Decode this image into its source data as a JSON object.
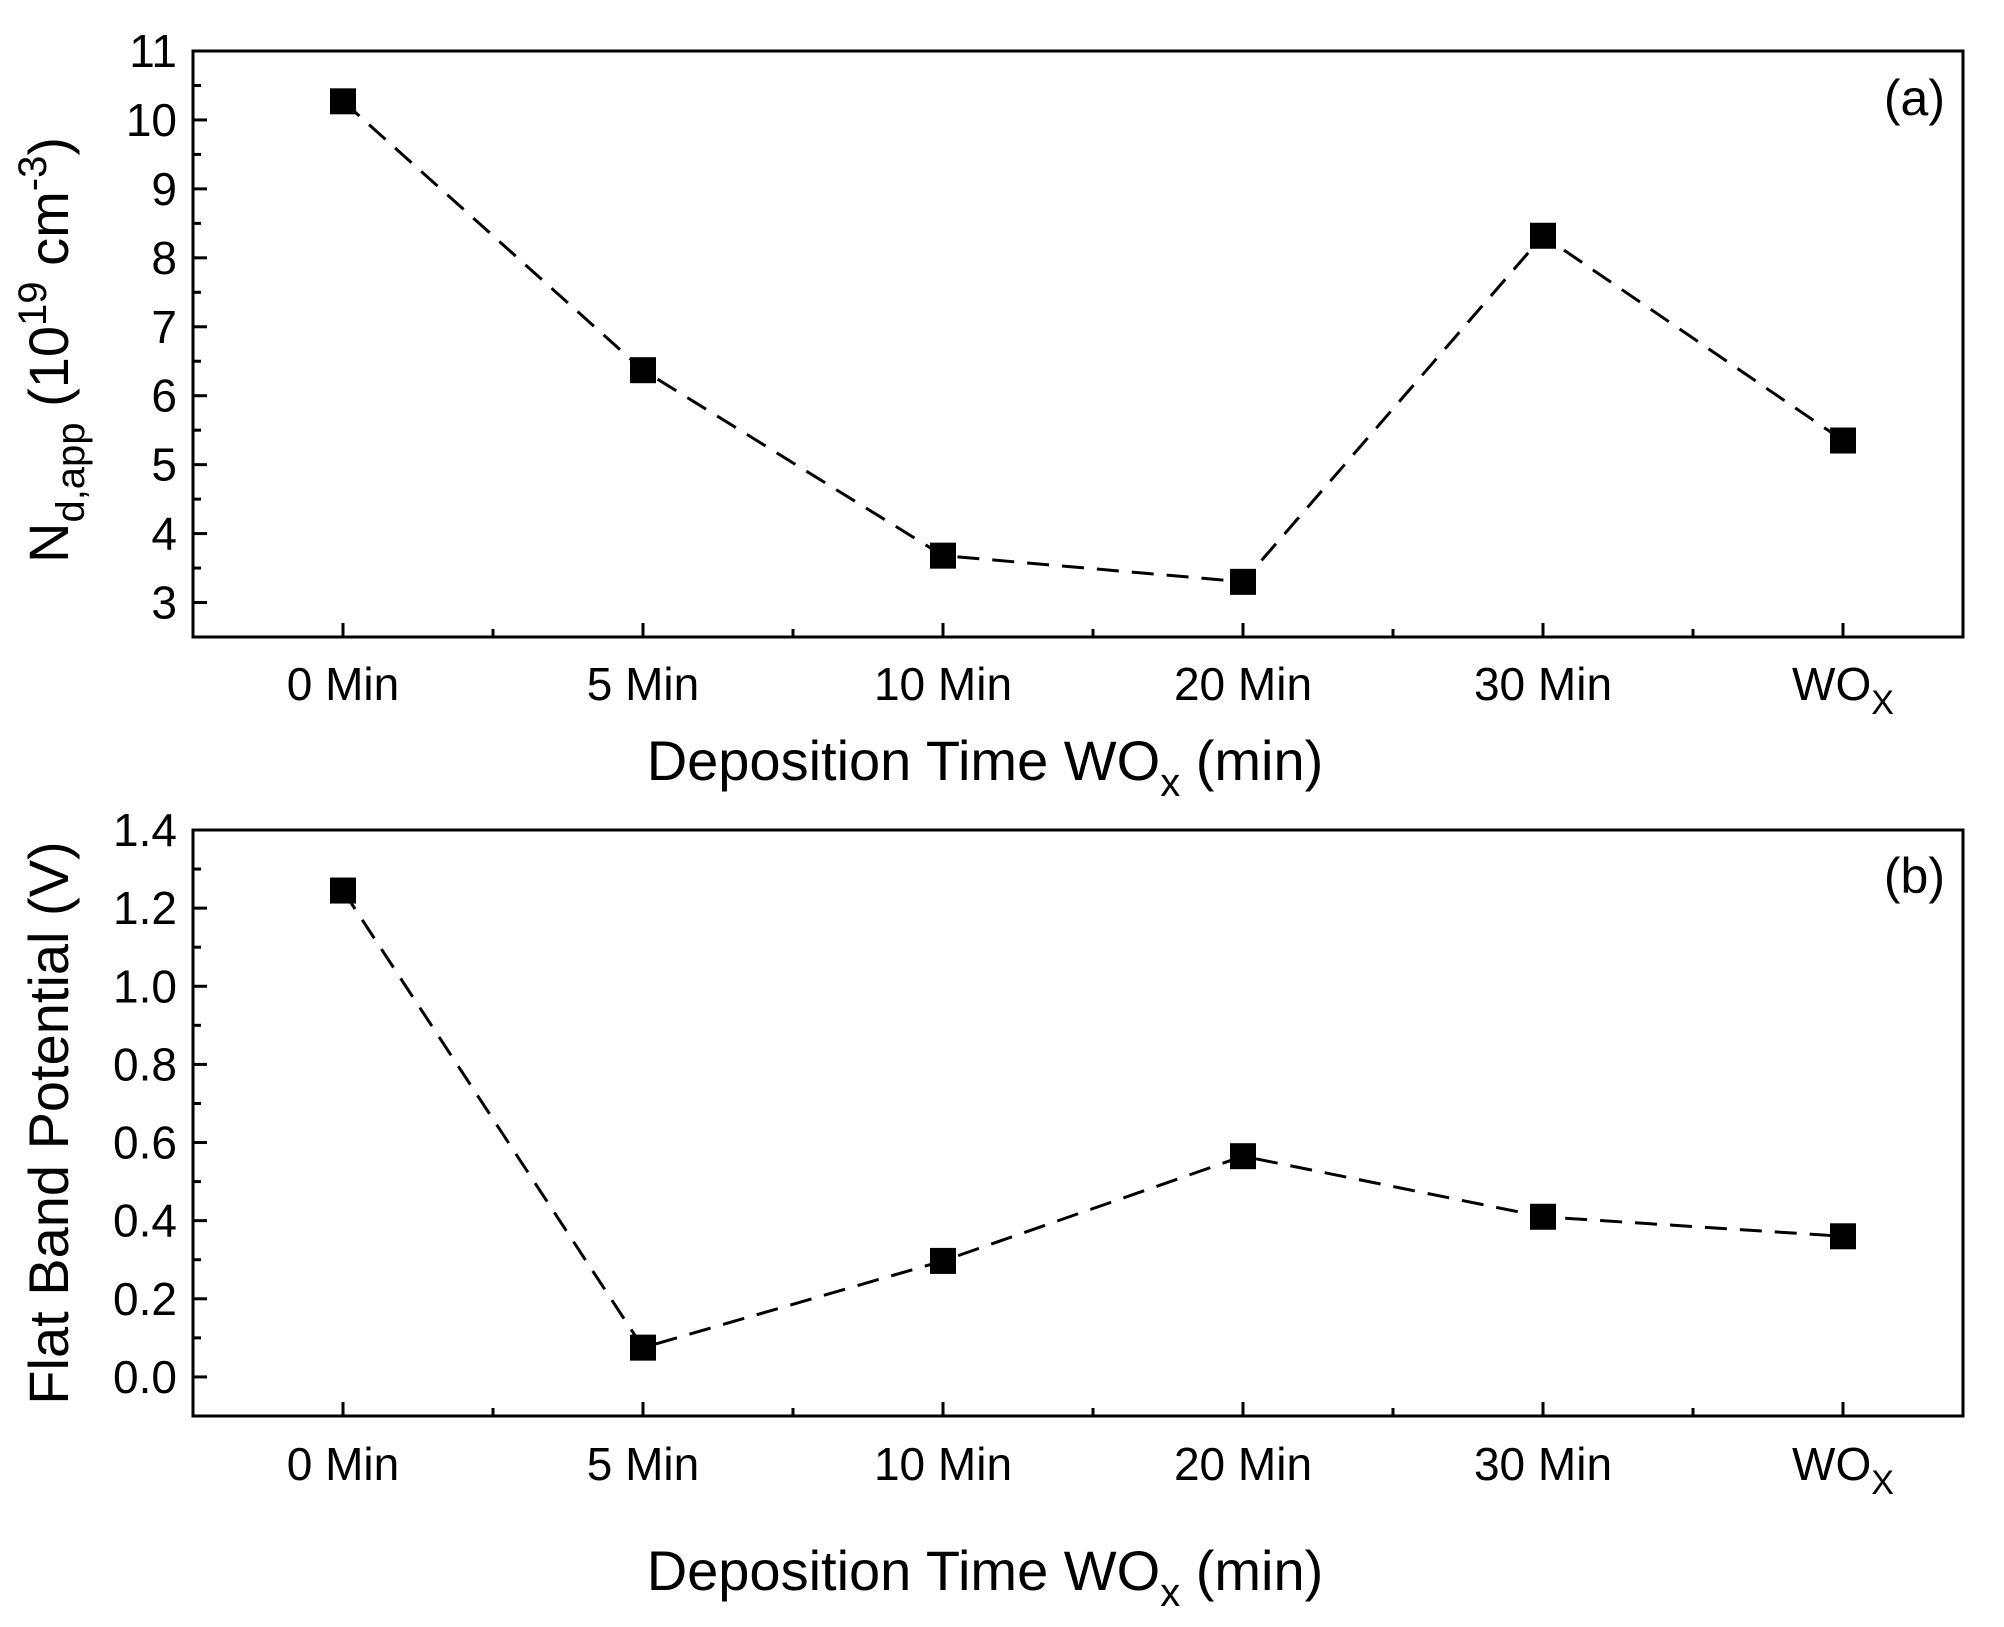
{
  "chart_data": [
    {
      "type": "line",
      "panel_label": "(a)",
      "categories": [
        {
          "main": "0 Min",
          "sub": ""
        },
        {
          "main": "5 Min",
          "sub": ""
        },
        {
          "main": "10 Min",
          "sub": ""
        },
        {
          "main": "20 Min",
          "sub": ""
        },
        {
          "main": "30 Min",
          "sub": ""
        },
        {
          "main": "WO",
          "sub": "X"
        }
      ],
      "series": [
        {
          "name": "N_d,app",
          "values": [
            10.27,
            6.37,
            3.68,
            3.3,
            8.32,
            5.35
          ]
        }
      ],
      "xlabel": {
        "main": "Deposition Time WO",
        "sub": "x",
        "tail": " (min)"
      },
      "ylabel": {
        "main": "N",
        "sub": "d,app",
        "mid": " (10",
        "sup": "19",
        "mid2": " cm",
        "sup2": "-3",
        "tail": ")"
      },
      "ylim": [
        2.5,
        11
      ],
      "yticks": [
        3,
        4,
        5,
        6,
        7,
        8,
        9,
        10,
        11
      ],
      "ytick_decimals": 0,
      "line_style": "dashed",
      "marker": "square",
      "color": "#000000"
    },
    {
      "type": "line",
      "panel_label": "(b)",
      "categories": [
        {
          "main": "0 Min",
          "sub": ""
        },
        {
          "main": "5 Min",
          "sub": ""
        },
        {
          "main": "10 Min",
          "sub": ""
        },
        {
          "main": "20 Min",
          "sub": ""
        },
        {
          "main": "30 Min",
          "sub": ""
        },
        {
          "main": "WO",
          "sub": "X"
        }
      ],
      "series": [
        {
          "name": "Flat Band Potential",
          "values": [
            1.245,
            0.075,
            0.297,
            0.565,
            0.41,
            0.36
          ]
        }
      ],
      "xlabel": {
        "main": "Deposition Time WO",
        "sub": "x",
        "tail": " (min)"
      },
      "ylabel": {
        "main": "Flat Band Potential (V)"
      },
      "ylim": [
        -0.1,
        1.4
      ],
      "yticks": [
        0.0,
        0.2,
        0.4,
        0.6,
        0.8,
        1.0,
        1.2,
        1.4
      ],
      "ytick_decimals": 1,
      "line_style": "dashed",
      "marker": "square",
      "color": "#000000"
    }
  ]
}
